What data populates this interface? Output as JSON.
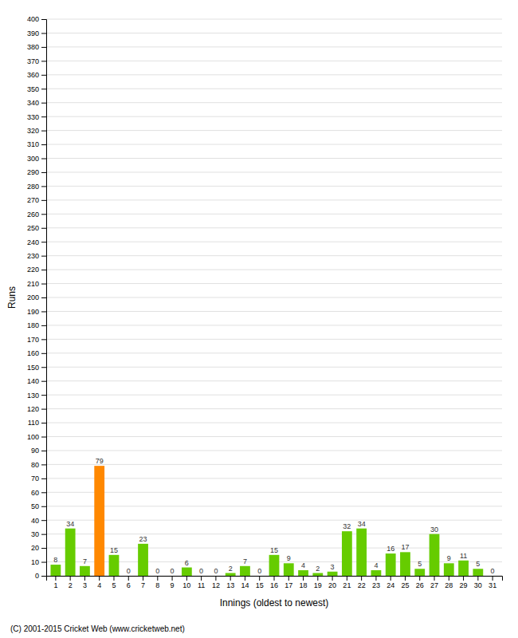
{
  "chart_data": {
    "type": "bar",
    "categories": [
      "1",
      "2",
      "3",
      "4",
      "5",
      "6",
      "7",
      "8",
      "9",
      "10",
      "11",
      "12",
      "13",
      "14",
      "15",
      "16",
      "17",
      "18",
      "19",
      "20",
      "21",
      "22",
      "23",
      "24",
      "25",
      "26",
      "27",
      "28",
      "29",
      "30",
      "31"
    ],
    "values": [
      8,
      34,
      7,
      79,
      15,
      0,
      23,
      0,
      0,
      6,
      0,
      0,
      2,
      7,
      0,
      15,
      9,
      4,
      2,
      3,
      32,
      34,
      4,
      16,
      17,
      5,
      30,
      9,
      11,
      5,
      0
    ],
    "colors": [
      "#66cc00",
      "#66cc00",
      "#66cc00",
      "#ff8800",
      "#66cc00",
      "#66cc00",
      "#66cc00",
      "#66cc00",
      "#66cc00",
      "#66cc00",
      "#66cc00",
      "#66cc00",
      "#66cc00",
      "#66cc00",
      "#66cc00",
      "#66cc00",
      "#66cc00",
      "#66cc00",
      "#66cc00",
      "#66cc00",
      "#66cc00",
      "#66cc00",
      "#66cc00",
      "#66cc00",
      "#66cc00",
      "#66cc00",
      "#66cc00",
      "#66cc00",
      "#66cc00",
      "#66cc00",
      "#66cc00"
    ],
    "x_label": "Innings (oldest to newest)",
    "y_label": "Runs",
    "ylim": [
      0,
      400
    ],
    "yticks": [
      0,
      10,
      20,
      30,
      40,
      50,
      60,
      70,
      80,
      90,
      100,
      110,
      120,
      130,
      140,
      150,
      160,
      170,
      180,
      190,
      200,
      210,
      220,
      230,
      240,
      250,
      260,
      270,
      280,
      290,
      300,
      310,
      320,
      330,
      340,
      350,
      360,
      370,
      380,
      390,
      400
    ],
    "grid": true,
    "data_labels": true,
    "annotations": [
      "(C) 2001-2015 Cricket Web (www.cricketweb.net)"
    ]
  }
}
